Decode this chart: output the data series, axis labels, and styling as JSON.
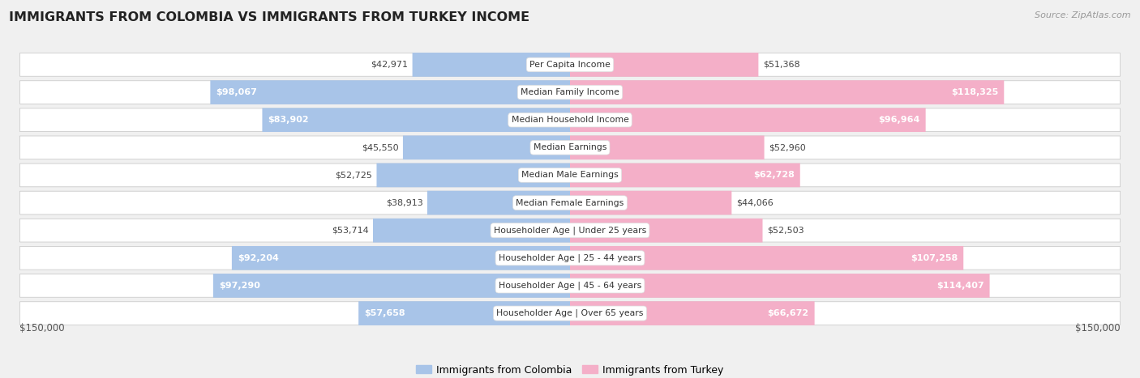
{
  "title": "IMMIGRANTS FROM COLOMBIA VS IMMIGRANTS FROM TURKEY INCOME",
  "source": "Source: ZipAtlas.com",
  "categories": [
    "Per Capita Income",
    "Median Family Income",
    "Median Household Income",
    "Median Earnings",
    "Median Male Earnings",
    "Median Female Earnings",
    "Householder Age | Under 25 years",
    "Householder Age | 25 - 44 years",
    "Householder Age | 45 - 64 years",
    "Householder Age | Over 65 years"
  ],
  "colombia_values": [
    42971,
    98067,
    83902,
    45550,
    52725,
    38913,
    53714,
    92204,
    97290,
    57658
  ],
  "turkey_values": [
    51368,
    118325,
    96964,
    52960,
    62728,
    44066,
    52503,
    107258,
    114407,
    66672
  ],
  "colombia_labels": [
    "$42,971",
    "$98,067",
    "$83,902",
    "$45,550",
    "$52,725",
    "$38,913",
    "$53,714",
    "$92,204",
    "$97,290",
    "$57,658"
  ],
  "turkey_labels": [
    "$51,368",
    "$118,325",
    "$96,964",
    "$52,960",
    "$62,728",
    "$44,066",
    "$52,503",
    "$107,258",
    "$114,407",
    "$66,672"
  ],
  "colombia_color_light": "#a8c4e8",
  "colombia_color_dark": "#5b9bd5",
  "turkey_color_light": "#f4afc8",
  "turkey_color_dark": "#e8538a",
  "max_value": 150000,
  "bg_color": "#f0f0f0",
  "row_bg": "#ffffff",
  "row_border": "#d8d8d8",
  "legend_colombia": "Immigrants from Colombia",
  "legend_turkey": "Immigrants from Turkey",
  "axis_label_left": "$150,000",
  "axis_label_right": "$150,000",
  "label_inside_threshold": 55000,
  "label_inside_threshold_col": 55000
}
